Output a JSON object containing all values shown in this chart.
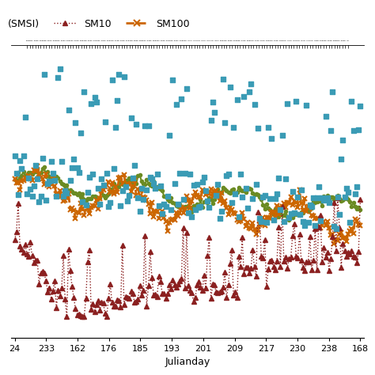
{
  "xlabel": "Julianday",
  "x_tick_labels": [
    "24",
    "233",
    "162",
    "176",
    "185",
    "193",
    "201",
    "209",
    "217",
    "230",
    "238",
    "168"
  ],
  "series": {
    "SMSI_sq": {
      "color": "#3A9BB5",
      "marker": "s",
      "linestyle": "none",
      "linewidth": 0.8,
      "markersize": 5,
      "label": "(SMSI)"
    },
    "SM10": {
      "color": "#8B2020",
      "marker": "^",
      "linestyle": ":",
      "linewidth": 1.0,
      "markersize": 4,
      "label": "SM10"
    },
    "SM100": {
      "color": "#CC6600",
      "marker": "x",
      "linestyle": "--",
      "linewidth": 2.0,
      "markersize": 5,
      "label": "SM100"
    },
    "SMSI_line": {
      "color": "#6B8B23",
      "linestyle": "-",
      "linewidth": 1.5,
      "markersize": 3,
      "label": ""
    }
  },
  "figsize": [
    4.74,
    4.74
  ],
  "dpi": 100,
  "background_color": "#FFFFFF",
  "legend_fontsize": 9,
  "tick_fontsize": 8,
  "axis_label_fontsize": 9
}
